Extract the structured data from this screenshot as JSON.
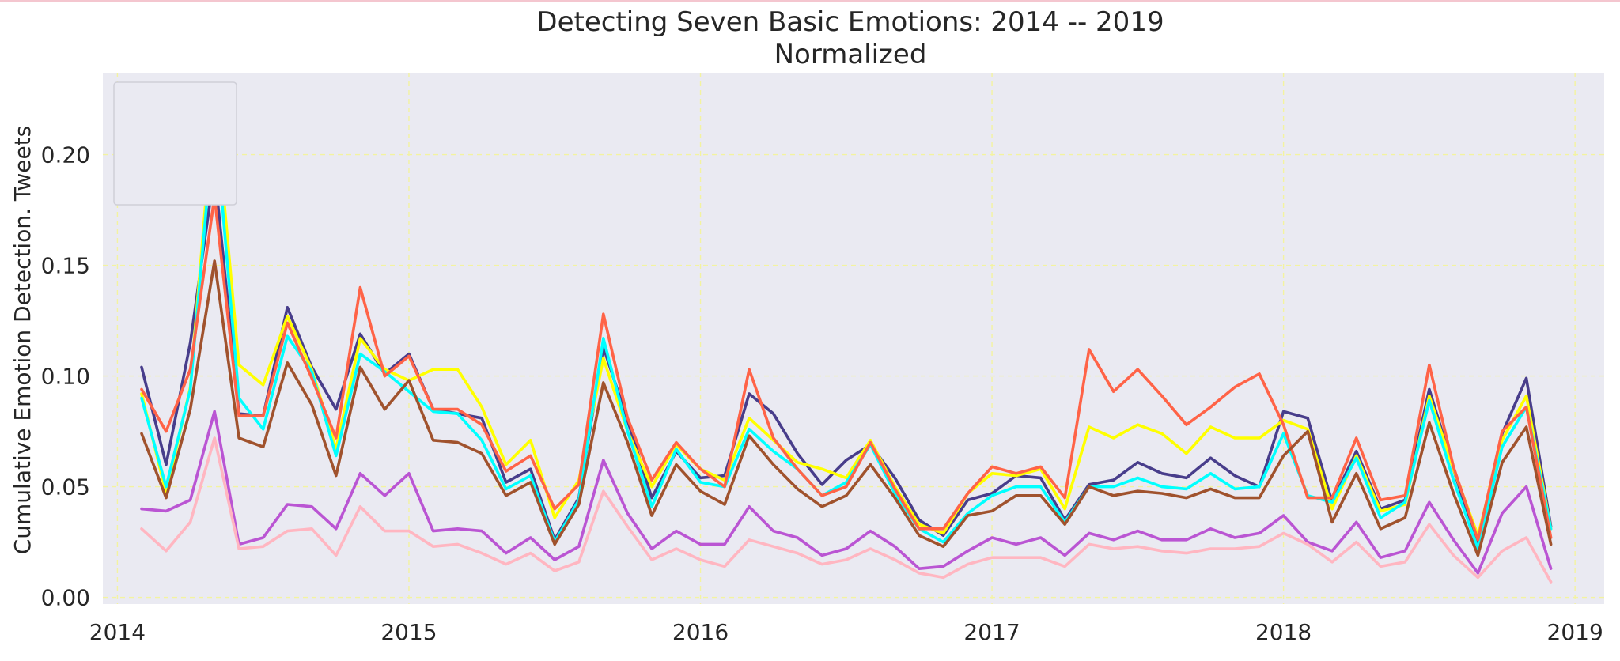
{
  "chart_data": {
    "type": "line",
    "title": "Detecting Seven Basic Emotions: 2014 -- 2019",
    "subtitle": "Normalized",
    "xlabel": "",
    "ylabel": "Cumulative Emotion Detection. Tweets",
    "xlim": [
      2013.95,
      2019.1
    ],
    "ylim": [
      -0.003,
      0.237
    ],
    "grid": true,
    "legend": "top-left (empty)",
    "x_ticks": [
      2014,
      2015,
      2016,
      2017,
      2018,
      2019
    ],
    "x_tick_labels": [
      "2014",
      "2015",
      "2016",
      "2017",
      "2018",
      "2019"
    ],
    "y_ticks": [
      0.0,
      0.05,
      0.1,
      0.15,
      0.2
    ],
    "y_tick_labels": [
      "0.00",
      "0.05",
      "0.10",
      "0.15",
      "0.20"
    ],
    "x": [
      2014.083,
      2014.167,
      2014.25,
      2014.333,
      2014.417,
      2014.5,
      2014.583,
      2014.667,
      2014.75,
      2014.833,
      2014.917,
      2015.0,
      2015.083,
      2015.167,
      2015.25,
      2015.333,
      2015.417,
      2015.5,
      2015.583,
      2015.667,
      2015.75,
      2015.833,
      2015.917,
      2016.0,
      2016.083,
      2016.167,
      2016.25,
      2016.333,
      2016.417,
      2016.5,
      2016.583,
      2016.667,
      2016.75,
      2016.833,
      2016.917,
      2017.0,
      2017.083,
      2017.167,
      2017.25,
      2017.333,
      2017.417,
      2017.5,
      2017.583,
      2017.667,
      2017.75,
      2017.833,
      2017.917,
      2018.0,
      2018.083,
      2018.167,
      2018.25,
      2018.333,
      2018.417,
      2018.5,
      2018.583,
      2018.667,
      2018.75,
      2018.833,
      2018.917
    ],
    "series": [
      {
        "color": "#483d8b",
        "values": [
          0.104,
          0.06,
          0.115,
          0.193,
          0.083,
          0.082,
          0.131,
          0.104,
          0.085,
          0.119,
          0.101,
          0.11,
          0.085,
          0.083,
          0.081,
          0.052,
          0.058,
          0.026,
          0.045,
          0.113,
          0.08,
          0.045,
          0.066,
          0.054,
          0.055,
          0.092,
          0.083,
          0.065,
          0.051,
          0.062,
          0.069,
          0.054,
          0.035,
          0.028,
          0.044,
          0.047,
          0.055,
          0.054,
          0.035,
          0.051,
          0.053,
          0.061,
          0.056,
          0.054,
          0.063,
          0.055,
          0.05,
          0.084,
          0.081,
          0.043,
          0.066,
          0.04,
          0.044,
          0.094,
          0.058,
          0.023,
          0.074,
          0.099,
          0.032
        ]
      },
      {
        "color": "#ffff00",
        "values": [
          0.092,
          0.047,
          0.095,
          0.227,
          0.105,
          0.096,
          0.127,
          0.103,
          0.067,
          0.117,
          0.103,
          0.098,
          0.103,
          0.103,
          0.086,
          0.06,
          0.071,
          0.036,
          0.053,
          0.108,
          0.075,
          0.05,
          0.069,
          0.058,
          0.053,
          0.081,
          0.071,
          0.061,
          0.058,
          0.054,
          0.071,
          0.05,
          0.033,
          0.029,
          0.047,
          0.056,
          0.055,
          0.058,
          0.04,
          0.077,
          0.072,
          0.078,
          0.074,
          0.065,
          0.077,
          0.072,
          0.072,
          0.08,
          0.076,
          0.04,
          0.064,
          0.039,
          0.042,
          0.091,
          0.058,
          0.028,
          0.071,
          0.091,
          0.031
        ]
      },
      {
        "color": "#00ffff",
        "values": [
          0.09,
          0.05,
          0.094,
          0.218,
          0.09,
          0.076,
          0.118,
          0.102,
          0.064,
          0.11,
          0.102,
          0.093,
          0.084,
          0.083,
          0.071,
          0.049,
          0.055,
          0.025,
          0.044,
          0.117,
          0.075,
          0.041,
          0.067,
          0.052,
          0.05,
          0.076,
          0.066,
          0.058,
          0.046,
          0.052,
          0.069,
          0.047,
          0.031,
          0.025,
          0.038,
          0.046,
          0.05,
          0.05,
          0.034,
          0.05,
          0.05,
          0.054,
          0.05,
          0.049,
          0.056,
          0.049,
          0.05,
          0.074,
          0.046,
          0.043,
          0.063,
          0.036,
          0.043,
          0.089,
          0.053,
          0.022,
          0.068,
          0.086,
          0.031
        ]
      },
      {
        "color": "#ff6347",
        "values": [
          0.094,
          0.075,
          0.103,
          0.181,
          0.082,
          0.082,
          0.124,
          0.099,
          0.072,
          0.14,
          0.1,
          0.109,
          0.085,
          0.085,
          0.078,
          0.057,
          0.064,
          0.04,
          0.051,
          0.128,
          0.081,
          0.053,
          0.07,
          0.058,
          0.05,
          0.103,
          0.072,
          0.058,
          0.046,
          0.05,
          0.07,
          0.049,
          0.031,
          0.031,
          0.047,
          0.059,
          0.056,
          0.059,
          0.045,
          0.112,
          0.093,
          0.103,
          0.091,
          0.078,
          0.086,
          0.095,
          0.101,
          0.078,
          0.045,
          0.045,
          0.072,
          0.044,
          0.046,
          0.105,
          0.059,
          0.026,
          0.075,
          0.086,
          0.027
        ]
      },
      {
        "color": "#a0522d",
        "values": [
          0.074,
          0.045,
          0.085,
          0.152,
          0.072,
          0.068,
          0.106,
          0.087,
          0.055,
          0.104,
          0.085,
          0.098,
          0.071,
          0.07,
          0.065,
          0.046,
          0.052,
          0.024,
          0.042,
          0.097,
          0.07,
          0.037,
          0.06,
          0.048,
          0.042,
          0.073,
          0.06,
          0.049,
          0.041,
          0.046,
          0.06,
          0.045,
          0.028,
          0.023,
          0.037,
          0.039,
          0.046,
          0.046,
          0.033,
          0.05,
          0.046,
          0.048,
          0.047,
          0.045,
          0.049,
          0.045,
          0.045,
          0.064,
          0.075,
          0.034,
          0.056,
          0.031,
          0.036,
          0.079,
          0.047,
          0.019,
          0.061,
          0.077,
          0.024
        ]
      },
      {
        "color": "#ba55d3",
        "values": [
          0.04,
          0.039,
          0.044,
          0.084,
          0.024,
          0.027,
          0.042,
          0.041,
          0.031,
          0.056,
          0.046,
          0.056,
          0.03,
          0.031,
          0.03,
          0.02,
          0.027,
          0.017,
          0.023,
          0.062,
          0.038,
          0.022,
          0.03,
          0.024,
          0.024,
          0.041,
          0.03,
          0.027,
          0.019,
          0.022,
          0.03,
          0.023,
          0.013,
          0.014,
          0.021,
          0.027,
          0.024,
          0.027,
          0.019,
          0.029,
          0.026,
          0.03,
          0.026,
          0.026,
          0.031,
          0.027,
          0.029,
          0.037,
          0.025,
          0.021,
          0.034,
          0.018,
          0.021,
          0.043,
          0.026,
          0.011,
          0.038,
          0.05,
          0.013
        ]
      },
      {
        "color": "#ffb6c1",
        "values": [
          0.031,
          0.021,
          0.034,
          0.072,
          0.022,
          0.023,
          0.03,
          0.031,
          0.019,
          0.041,
          0.03,
          0.03,
          0.023,
          0.024,
          0.02,
          0.015,
          0.02,
          0.012,
          0.016,
          0.048,
          0.032,
          0.017,
          0.022,
          0.017,
          0.014,
          0.026,
          0.023,
          0.02,
          0.015,
          0.017,
          0.022,
          0.017,
          0.011,
          0.009,
          0.015,
          0.018,
          0.018,
          0.018,
          0.014,
          0.024,
          0.022,
          0.023,
          0.021,
          0.02,
          0.022,
          0.022,
          0.023,
          0.029,
          0.024,
          0.016,
          0.025,
          0.014,
          0.016,
          0.033,
          0.019,
          0.009,
          0.021,
          0.027,
          0.007
        ]
      }
    ]
  }
}
